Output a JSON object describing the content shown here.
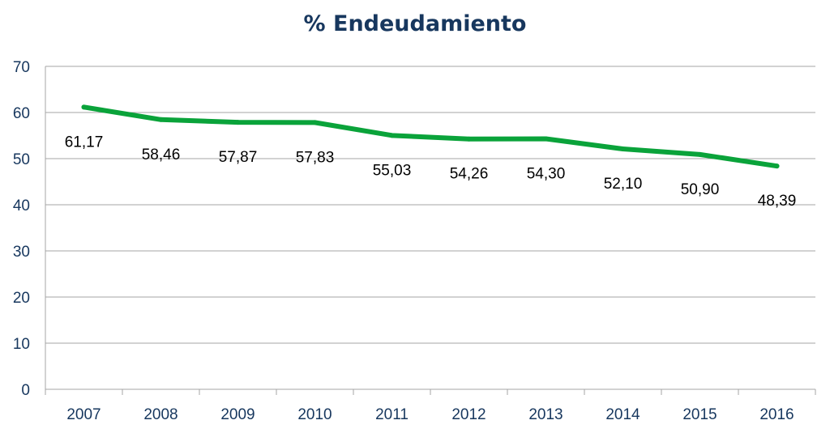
{
  "chart_data": {
    "type": "line",
    "title": "% Endeudamiento",
    "xlabel": "",
    "ylabel": "",
    "categories": [
      "2007",
      "2008",
      "2009",
      "2010",
      "2011",
      "2012",
      "2013",
      "2014",
      "2015",
      "2016"
    ],
    "series": [
      {
        "values": [
          61.17,
          58.46,
          57.87,
          57.83,
          55.03,
          54.26,
          54.3,
          52.1,
          50.9,
          48.39
        ],
        "data_labels": [
          "61,17",
          "58,46",
          "57,87",
          "57,83",
          "55,03",
          "54,26",
          "54,30",
          "52,10",
          "50,90",
          "48,39"
        ],
        "color": "#0aa33a"
      }
    ],
    "ylim": [
      0,
      70
    ],
    "yticks": [
      "0",
      "10",
      "20",
      "30",
      "40",
      "50",
      "60",
      "70"
    ],
    "grid": true,
    "gridline_color": "#a6a6a6",
    "axis_text_color": "#17375e",
    "title_color": "#17375e",
    "legend": "none"
  }
}
